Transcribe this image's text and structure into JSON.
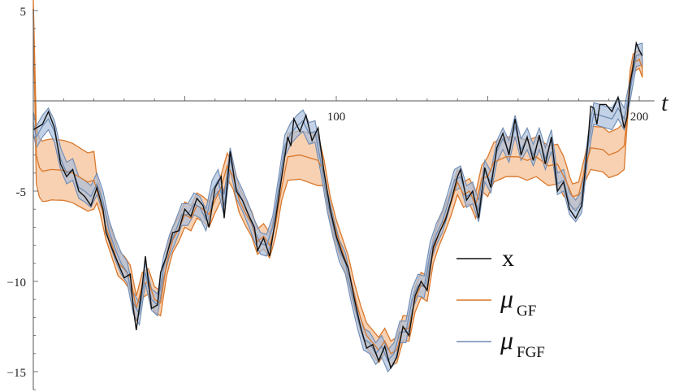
{
  "chart_data": {
    "type": "line",
    "xlabel": "t",
    "ylabel": "",
    "xlim": [
      0,
      205
    ],
    "ylim": [
      -16,
      5
    ],
    "x_ticks": [
      {
        "value": 100,
        "label": "100"
      },
      {
        "value": 200,
        "label": "200"
      }
    ],
    "y_ticks": [
      {
        "value": 5,
        "label": "5"
      },
      {
        "value": -5,
        "label": "-5"
      },
      {
        "value": -10,
        "label": "−10"
      },
      {
        "value": -15,
        "label": "−15"
      }
    ],
    "legend": {
      "position": "bottom-right",
      "entries": [
        {
          "key": "x",
          "label": "x",
          "sub": "",
          "color": "#111111"
        },
        {
          "key": "gf",
          "label": "μ",
          "sub": "GF",
          "color": "#d9782d"
        },
        {
          "key": "fgf",
          "label": "μ",
          "sub": "FGF",
          "color": "#6f8bb3"
        }
      ]
    },
    "colors": {
      "x": "#111111",
      "gf_line": "#d9782d",
      "gf_band": "#f2b27f",
      "fgf_line": "#6f8bb3",
      "fgf_band": "#a9bfdc"
    },
    "knots": {
      "x": [
        [
          0,
          -1.6
        ],
        [
          3,
          -1.3
        ],
        [
          5,
          -0.6
        ],
        [
          7,
          -1.5
        ],
        [
          9,
          -3.5
        ],
        [
          11,
          -4.2
        ],
        [
          13,
          -3.8
        ],
        [
          15,
          -5.0
        ],
        [
          17,
          -5.3
        ],
        [
          19,
          -5.8
        ],
        [
          21,
          -4.8
        ],
        [
          23,
          -6.0
        ],
        [
          24,
          -7.3
        ],
        [
          26,
          -8.2
        ],
        [
          28,
          -9.0
        ],
        [
          30,
          -9.8
        ],
        [
          32,
          -9.6
        ],
        [
          33,
          -11.5
        ],
        [
          34,
          -12.7
        ],
        [
          36,
          -10.2
        ],
        [
          37,
          -8.6
        ],
        [
          39,
          -11.5
        ],
        [
          41,
          -11.3
        ],
        [
          42,
          -9.5
        ],
        [
          44,
          -8.6
        ],
        [
          46,
          -7.3
        ],
        [
          48,
          -7.2
        ],
        [
          50,
          -6.0
        ],
        [
          52,
          -6.4
        ],
        [
          54,
          -5.4
        ],
        [
          56,
          -5.8
        ],
        [
          58,
          -7.0
        ],
        [
          60,
          -4.8
        ],
        [
          62,
          -4.2
        ],
        [
          63,
          -6.5
        ],
        [
          65,
          -2.8
        ],
        [
          67,
          -5.0
        ],
        [
          69,
          -5.5
        ],
        [
          71,
          -6.3
        ],
        [
          73,
          -7.0
        ],
        [
          74,
          -8.3
        ],
        [
          76,
          -7.6
        ],
        [
          78,
          -8.6
        ],
        [
          80,
          -6.5
        ],
        [
          82,
          -4.2
        ],
        [
          84,
          -2.0
        ],
        [
          85,
          -2.5
        ],
        [
          86,
          -1.0
        ],
        [
          88,
          -1.7
        ],
        [
          90,
          -0.8
        ],
        [
          92,
          -2.2
        ],
        [
          94,
          -1.5
        ],
        [
          96,
          -4.0
        ],
        [
          98,
          -6.0
        ],
        [
          100,
          -7.5
        ],
        [
          102,
          -8.5
        ],
        [
          104,
          -9.3
        ],
        [
          106,
          -11.0
        ],
        [
          108,
          -12.5
        ],
        [
          110,
          -13.7
        ],
        [
          112,
          -13.5
        ],
        [
          114,
          -14.4
        ],
        [
          116,
          -13.6
        ],
        [
          118,
          -14.8
        ],
        [
          120,
          -14.2
        ],
        [
          122,
          -12.5
        ],
        [
          124,
          -13.0
        ],
        [
          126,
          -10.8
        ],
        [
          128,
          -10.0
        ],
        [
          130,
          -10.5
        ],
        [
          132,
          -8.1
        ],
        [
          134,
          -7.3
        ],
        [
          136,
          -6.6
        ],
        [
          138,
          -5.5
        ],
        [
          140,
          -4.2
        ],
        [
          141,
          -3.8
        ],
        [
          143,
          -5.5
        ],
        [
          145,
          -5.0
        ],
        [
          147,
          -6.5
        ],
        [
          149,
          -3.7
        ],
        [
          151,
          -4.8
        ],
        [
          153,
          -2.6
        ],
        [
          155,
          -1.8
        ],
        [
          157,
          -3.0
        ],
        [
          159,
          -1.0
        ],
        [
          161,
          -3.0
        ],
        [
          163,
          -2.0
        ],
        [
          165,
          -3.3
        ],
        [
          167,
          -1.9
        ],
        [
          169,
          -3.5
        ],
        [
          171,
          -2.0
        ],
        [
          173,
          -5.0
        ],
        [
          175,
          -4.5
        ],
        [
          177,
          -6.0
        ],
        [
          179,
          -6.5
        ],
        [
          181,
          -5.8
        ],
        [
          183,
          -2.4
        ],
        [
          184,
          -0.3
        ],
        [
          185,
          -0.4
        ],
        [
          186,
          -1.3
        ],
        [
          187,
          -0.2
        ],
        [
          189,
          -0.2
        ],
        [
          191,
          -0.6
        ],
        [
          193,
          0.2
        ],
        [
          195,
          -1.5
        ],
        [
          196,
          -0.9
        ],
        [
          197,
          1.0
        ],
        [
          198,
          1.9
        ],
        [
          199,
          3.2
        ],
        [
          200,
          2.8
        ],
        [
          201,
          2.5
        ]
      ],
      "gf_mean": [
        [
          0,
          5.1
        ],
        [
          1,
          -3.0
        ],
        [
          2,
          -3.7
        ],
        [
          3,
          -3.9
        ],
        [
          6,
          -3.8
        ],
        [
          10,
          -3.85
        ],
        [
          13,
          -4.0
        ],
        [
          16,
          -4.3
        ],
        [
          18,
          -4.5
        ],
        [
          20,
          -4.4
        ],
        [
          22,
          -5.5
        ],
        [
          24,
          -7.0
        ],
        [
          26,
          -8.0
        ],
        [
          28,
          -9.0
        ],
        [
          30,
          -9.3
        ],
        [
          32,
          -9.8
        ],
        [
          34,
          -11.5
        ],
        [
          36,
          -10.2
        ],
        [
          38,
          -10.0
        ],
        [
          40,
          -11.0
        ],
        [
          42,
          -11.2
        ],
        [
          44,
          -9.0
        ],
        [
          46,
          -7.7
        ],
        [
          48,
          -7.1
        ],
        [
          50,
          -6.3
        ],
        [
          52,
          -6.5
        ],
        [
          54,
          -5.8
        ],
        [
          56,
          -6.0
        ],
        [
          58,
          -6.3
        ],
        [
          60,
          -5.5
        ],
        [
          62,
          -4.8
        ],
        [
          64,
          -3.6
        ],
        [
          66,
          -4.2
        ],
        [
          68,
          -5.5
        ],
        [
          70,
          -6.2
        ],
        [
          72,
          -6.8
        ],
        [
          74,
          -7.8
        ],
        [
          76,
          -7.5
        ],
        [
          78,
          -8.0
        ],
        [
          80,
          -6.8
        ],
        [
          82,
          -4.8
        ],
        [
          84,
          -3.1
        ],
        [
          88,
          -3.0
        ],
        [
          92,
          -3.2
        ],
        [
          94,
          -3.3
        ],
        [
          96,
          -4.0
        ],
        [
          98,
          -6.0
        ],
        [
          100,
          -7.3
        ],
        [
          102,
          -8.3
        ],
        [
          104,
          -9.3
        ],
        [
          106,
          -10.8
        ],
        [
          108,
          -12.0
        ],
        [
          110,
          -13.0
        ],
        [
          112,
          -13.4
        ],
        [
          114,
          -13.8
        ],
        [
          116,
          -13.3
        ],
        [
          118,
          -14.0
        ],
        [
          120,
          -13.8
        ],
        [
          122,
          -12.6
        ],
        [
          124,
          -12.6
        ],
        [
          126,
          -11.0
        ],
        [
          128,
          -10.2
        ],
        [
          130,
          -10.4
        ],
        [
          132,
          -8.3
        ],
        [
          134,
          -7.3
        ],
        [
          136,
          -6.5
        ],
        [
          138,
          -5.6
        ],
        [
          140,
          -4.5
        ],
        [
          142,
          -5.2
        ],
        [
          144,
          -5.0
        ],
        [
          146,
          -5.8
        ],
        [
          148,
          -4.3
        ],
        [
          150,
          -4.2
        ],
        [
          152,
          -3.4
        ],
        [
          156,
          -3.1
        ],
        [
          160,
          -3.1
        ],
        [
          163,
          -3.3
        ],
        [
          166,
          -3.1
        ],
        [
          170,
          -3.6
        ],
        [
          173,
          -3.5
        ],
        [
          176,
          -4.5
        ],
        [
          178,
          -5.3
        ],
        [
          180,
          -5.2
        ],
        [
          182,
          -3.8
        ],
        [
          184,
          -2.6
        ],
        [
          188,
          -2.7
        ],
        [
          190,
          -3.0
        ],
        [
          193,
          -2.8
        ],
        [
          195,
          -2.5
        ],
        [
          196,
          -0.8
        ],
        [
          197,
          1.2
        ],
        [
          198,
          2.1
        ],
        [
          199,
          2.2
        ],
        [
          200,
          2.3
        ],
        [
          201,
          1.8
        ]
      ],
      "gf_half_width": [
        [
          0,
          0.5
        ],
        [
          1,
          1.6
        ],
        [
          4,
          1.7
        ],
        [
          20,
          1.6
        ],
        [
          21,
          0.7
        ],
        [
          82,
          0.7
        ],
        [
          84,
          1.3
        ],
        [
          94,
          1.4
        ],
        [
          96,
          0.7
        ],
        [
          148,
          0.7
        ],
        [
          150,
          1.1
        ],
        [
          175,
          1.1
        ],
        [
          177,
          0.7
        ],
        [
          182,
          0.7
        ],
        [
          184,
          1.2
        ],
        [
          195,
          1.3
        ],
        [
          196,
          0.5
        ],
        [
          201,
          0.5
        ]
      ],
      "fgf_mean": [
        [
          0,
          -1.2
        ],
        [
          1,
          -2.0
        ],
        [
          3,
          -1.4
        ],
        [
          5,
          -1.0
        ],
        [
          7,
          -1.7
        ],
        [
          9,
          -3.2
        ],
        [
          11,
          -4.0
        ],
        [
          13,
          -3.8
        ],
        [
          15,
          -4.8
        ],
        [
          17,
          -5.0
        ],
        [
          19,
          -5.3
        ],
        [
          21,
          -4.6
        ],
        [
          23,
          -5.6
        ],
        [
          25,
          -7.2
        ],
        [
          27,
          -8.2
        ],
        [
          29,
          -9.0
        ],
        [
          31,
          -9.5
        ],
        [
          33,
          -11.2
        ],
        [
          35,
          -11.8
        ],
        [
          37,
          -9.5
        ],
        [
          39,
          -11.0
        ],
        [
          41,
          -11.3
        ],
        [
          43,
          -9.2
        ],
        [
          45,
          -8.0
        ],
        [
          47,
          -7.2
        ],
        [
          49,
          -6.3
        ],
        [
          51,
          -6.3
        ],
        [
          53,
          -5.7
        ],
        [
          55,
          -5.9
        ],
        [
          57,
          -6.6
        ],
        [
          59,
          -5.0
        ],
        [
          61,
          -4.4
        ],
        [
          63,
          -5.8
        ],
        [
          65,
          -3.2
        ],
        [
          67,
          -4.8
        ],
        [
          69,
          -5.5
        ],
        [
          71,
          -6.3
        ],
        [
          73,
          -7.2
        ],
        [
          75,
          -7.9
        ],
        [
          77,
          -8.0
        ],
        [
          79,
          -7.0
        ],
        [
          81,
          -4.8
        ],
        [
          83,
          -2.5
        ],
        [
          85,
          -1.8
        ],
        [
          87,
          -1.4
        ],
        [
          89,
          -1.1
        ],
        [
          91,
          -1.8
        ],
        [
          93,
          -1.7
        ],
        [
          95,
          -3.5
        ],
        [
          97,
          -5.5
        ],
        [
          99,
          -7.0
        ],
        [
          101,
          -8.3
        ],
        [
          103,
          -9.0
        ],
        [
          105,
          -10.6
        ],
        [
          107,
          -12.0
        ],
        [
          109,
          -13.2
        ],
        [
          111,
          -13.4
        ],
        [
          113,
          -14.0
        ],
        [
          115,
          -13.6
        ],
        [
          117,
          -14.4
        ],
        [
          119,
          -14.0
        ],
        [
          121,
          -12.8
        ],
        [
          123,
          -12.8
        ],
        [
          125,
          -11.0
        ],
        [
          127,
          -10.2
        ],
        [
          129,
          -10.3
        ],
        [
          131,
          -8.4
        ],
        [
          133,
          -7.4
        ],
        [
          135,
          -6.7
        ],
        [
          137,
          -5.6
        ],
        [
          139,
          -4.4
        ],
        [
          141,
          -4.2
        ],
        [
          143,
          -5.3
        ],
        [
          145,
          -5.1
        ],
        [
          147,
          -6.1
        ],
        [
          149,
          -3.9
        ],
        [
          151,
          -4.5
        ],
        [
          153,
          -2.8
        ],
        [
          155,
          -2.1
        ],
        [
          157,
          -2.8
        ],
        [
          159,
          -1.4
        ],
        [
          161,
          -2.7
        ],
        [
          163,
          -2.1
        ],
        [
          165,
          -3.0
        ],
        [
          167,
          -2.1
        ],
        [
          169,
          -3.2
        ],
        [
          171,
          -2.2
        ],
        [
          173,
          -4.6
        ],
        [
          175,
          -4.4
        ],
        [
          177,
          -5.7
        ],
        [
          179,
          -6.1
        ],
        [
          181,
          -5.6
        ],
        [
          183,
          -2.6
        ],
        [
          185,
          -0.7
        ],
        [
          187,
          -0.8
        ],
        [
          189,
          -0.9
        ],
        [
          191,
          -1.0
        ],
        [
          193,
          -0.4
        ],
        [
          195,
          -1.0
        ],
        [
          197,
          0.6
        ],
        [
          199,
          2.5
        ],
        [
          201,
          2.6
        ]
      ],
      "fgf_half_width": [
        [
          0,
          0.6
        ],
        [
          201,
          0.6
        ]
      ]
    }
  }
}
